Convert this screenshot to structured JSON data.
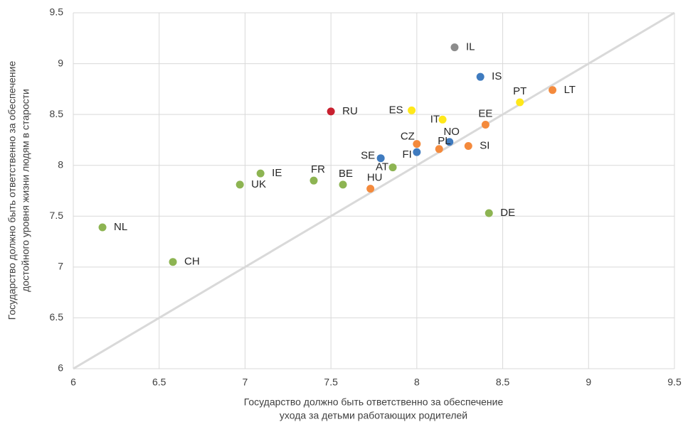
{
  "chart_data": {
    "type": "scatter",
    "xlabel": [
      "Государство должно быть ответственно за обеспечение",
      "ухода за детьми работающих родителей"
    ],
    "ylabel": [
      "Государство должно быть ответственно за обеспечение",
      "достойного уровня жизни людям в старости"
    ],
    "labels": [
      "IL",
      "IS",
      "LT",
      "PT",
      "RU",
      "ES",
      "IT",
      "EE",
      "CZ",
      "NO",
      "SI",
      "PL",
      "FI",
      "SE",
      "AT",
      "IE",
      "FR",
      "BE",
      "UK",
      "HU",
      "DE",
      "NL",
      "CH"
    ],
    "x": [
      8.22,
      8.37,
      8.79,
      8.6,
      7.5,
      7.97,
      8.15,
      8.4,
      8.0,
      8.19,
      8.3,
      8.13,
      8.0,
      7.79,
      7.86,
      7.09,
      7.4,
      7.57,
      6.97,
      7.73,
      8.42,
      6.17,
      6.58
    ],
    "y": [
      9.16,
      8.87,
      8.74,
      8.62,
      8.53,
      8.54,
      8.45,
      8.4,
      8.21,
      8.23,
      8.19,
      8.16,
      8.13,
      8.07,
      7.98,
      7.92,
      7.85,
      7.81,
      7.81,
      7.77,
      7.53,
      7.39,
      7.05
    ],
    "colors": [
      "#8c8c8c",
      "#3f7bbf",
      "#f48a3c",
      "#ffe81a",
      "#c8202f",
      "#ffe81a",
      "#ffe81a",
      "#f48a3c",
      "#f48a3c",
      "#3f7bbf",
      "#f48a3c",
      "#f48a3c",
      "#3f7bbf",
      "#3f7bbf",
      "#8db452",
      "#8db452",
      "#8db452",
      "#8db452",
      "#8db452",
      "#f48a3c",
      "#8db452",
      "#8db452",
      "#8db452"
    ],
    "xlim": [
      6,
      9.5
    ],
    "ylim": [
      6,
      9.5
    ],
    "xticks": [
      6,
      6.5,
      7,
      7.5,
      8,
      8.5,
      9,
      9.5
    ],
    "yticks": [
      6,
      6.5,
      7,
      7.5,
      8,
      8.5,
      9,
      9.5
    ],
    "grid": true,
    "diagonal": true,
    "diagonal_color": "#d9d9d9"
  }
}
